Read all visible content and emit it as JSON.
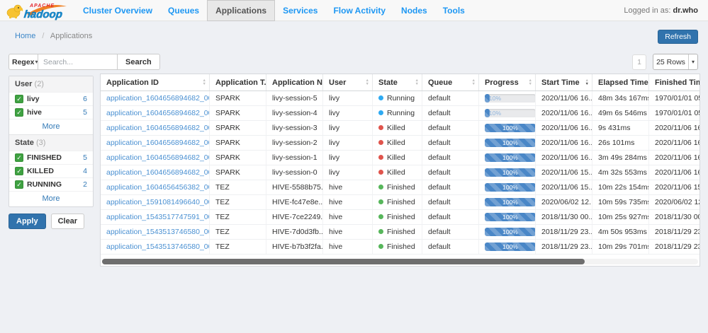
{
  "navbar": {
    "logo_apache": "APACHE",
    "logo_hadoop": "hadoop",
    "items": [
      {
        "label": "Cluster Overview",
        "active": false
      },
      {
        "label": "Queues",
        "active": false
      },
      {
        "label": "Applications",
        "active": true
      },
      {
        "label": "Services",
        "active": false
      },
      {
        "label": "Flow Activity",
        "active": false
      },
      {
        "label": "Nodes",
        "active": false
      },
      {
        "label": "Tools",
        "active": false
      }
    ],
    "logged_in_label": "Logged in as:",
    "logged_in_user": "dr.who"
  },
  "breadcrumb": {
    "home": "Home",
    "separator": "/",
    "current": "Applications"
  },
  "actions": {
    "refresh": "Refresh"
  },
  "search": {
    "mode": "Regex",
    "caret": "▾",
    "placeholder": "Search...",
    "button": "Search"
  },
  "pagination": {
    "page": "1",
    "rows_per_page": "25 Rows",
    "caret": "▾"
  },
  "filters": {
    "apply": "Apply",
    "clear": "Clear",
    "sections": [
      {
        "title": "User",
        "count": "(2)",
        "more": "More",
        "items": [
          {
            "label": "livy",
            "count": "6",
            "checked": true
          },
          {
            "label": "hive",
            "count": "5",
            "checked": true
          }
        ]
      },
      {
        "title": "State",
        "count": "(3)",
        "more": "More",
        "items": [
          {
            "label": "FINISHED",
            "count": "5",
            "checked": true
          },
          {
            "label": "KILLED",
            "count": "4",
            "checked": true
          },
          {
            "label": "RUNNING",
            "count": "2",
            "checked": true
          }
        ]
      }
    ]
  },
  "table": {
    "columns": [
      {
        "label": "Application ID",
        "sort_active": false
      },
      {
        "label": "Application T...",
        "sort_active": false
      },
      {
        "label": "Application N...",
        "sort_active": false
      },
      {
        "label": "User",
        "sort_active": false
      },
      {
        "label": "State",
        "sort_active": false
      },
      {
        "label": "Queue",
        "sort_active": false
      },
      {
        "label": "Progress",
        "sort_active": false
      },
      {
        "label": "Start Time",
        "sort_active": true
      },
      {
        "label": "Elapsed Time",
        "sort_active": false
      },
      {
        "label": "Finished Time",
        "sort_active": false
      }
    ],
    "rows": [
      {
        "id": "application_1604656894682_0006",
        "type": "SPARK",
        "name": "livy-session-5",
        "user": "livy",
        "state": "Running",
        "queue": "default",
        "progress": 10,
        "progress_label": "10%",
        "start": "2020/11/06 16...",
        "elapsed": "48m 34s 167ms",
        "finished": "1970/01/01 05..."
      },
      {
        "id": "application_1604656894682_0005",
        "type": "SPARK",
        "name": "livy-session-4",
        "user": "livy",
        "state": "Running",
        "queue": "default",
        "progress": 10,
        "progress_label": "10%",
        "start": "2020/11/06 16...",
        "elapsed": "49m 6s 546ms",
        "finished": "1970/01/01 05..."
      },
      {
        "id": "application_1604656894682_0004",
        "type": "SPARK",
        "name": "livy-session-3",
        "user": "livy",
        "state": "Killed",
        "queue": "default",
        "progress": 100,
        "progress_label": "100%",
        "start": "2020/11/06 16...",
        "elapsed": "9s 431ms",
        "finished": "2020/11/06 16..."
      },
      {
        "id": "application_1604656894682_0003",
        "type": "SPARK",
        "name": "livy-session-2",
        "user": "livy",
        "state": "Killed",
        "queue": "default",
        "progress": 100,
        "progress_label": "100%",
        "start": "2020/11/06 16...",
        "elapsed": "26s 101ms",
        "finished": "2020/11/06 16..."
      },
      {
        "id": "application_1604656894682_0002",
        "type": "SPARK",
        "name": "livy-session-1",
        "user": "livy",
        "state": "Killed",
        "queue": "default",
        "progress": 100,
        "progress_label": "100%",
        "start": "2020/11/06 16...",
        "elapsed": "3m 49s 284ms",
        "finished": "2020/11/06 16..."
      },
      {
        "id": "application_1604656894682_0001",
        "type": "SPARK",
        "name": "livy-session-0",
        "user": "livy",
        "state": "Killed",
        "queue": "default",
        "progress": 100,
        "progress_label": "100%",
        "start": "2020/11/06 15...",
        "elapsed": "4m 32s 553ms",
        "finished": "2020/11/06 16..."
      },
      {
        "id": "application_1604656456382_0001",
        "type": "TEZ",
        "name": "HIVE-5588b75...",
        "user": "hive",
        "state": "Finished",
        "queue": "default",
        "progress": 100,
        "progress_label": "100%",
        "start": "2020/11/06 15...",
        "elapsed": "10m 22s 154ms",
        "finished": "2020/11/06 15..."
      },
      {
        "id": "application_1591081496640_0001",
        "type": "TEZ",
        "name": "HIVE-fc47e8e...",
        "user": "hive",
        "state": "Finished",
        "queue": "default",
        "progress": 100,
        "progress_label": "100%",
        "start": "2020/06/02 12...",
        "elapsed": "10m 59s 735ms",
        "finished": "2020/06/02 12..."
      },
      {
        "id": "application_1543517747591_0001",
        "type": "TEZ",
        "name": "HIVE-7ce2249...",
        "user": "hive",
        "state": "Finished",
        "queue": "default",
        "progress": 100,
        "progress_label": "100%",
        "start": "2018/11/30 00...",
        "elapsed": "10m 25s 927ms",
        "finished": "2018/11/30 00..."
      },
      {
        "id": "application_1543513746580_0002",
        "type": "TEZ",
        "name": "HIVE-7d0d3fb...",
        "user": "hive",
        "state": "Finished",
        "queue": "default",
        "progress": 100,
        "progress_label": "100%",
        "start": "2018/11/29 23...",
        "elapsed": "4m 50s 953ms",
        "finished": "2018/11/29 23..."
      },
      {
        "id": "application_1543513746580_0001",
        "type": "TEZ",
        "name": "HIVE-b7b3f2fa...",
        "user": "hive",
        "state": "Finished",
        "queue": "default",
        "progress": 100,
        "progress_label": "100%",
        "start": "2018/11/29 23...",
        "elapsed": "10m 29s 701ms",
        "finished": "2018/11/29 23..."
      }
    ]
  },
  "colors": {
    "nav_blue": "#1d97f3",
    "accent_blue": "#3173ad",
    "link_blue": "#4a90d2",
    "checkbox_green": "#3fa142",
    "progress_blue": "#4a87c7",
    "state": {
      "Running": "#2eaaf2",
      "Killed": "#e0544c",
      "Finished": "#57b65b"
    }
  }
}
